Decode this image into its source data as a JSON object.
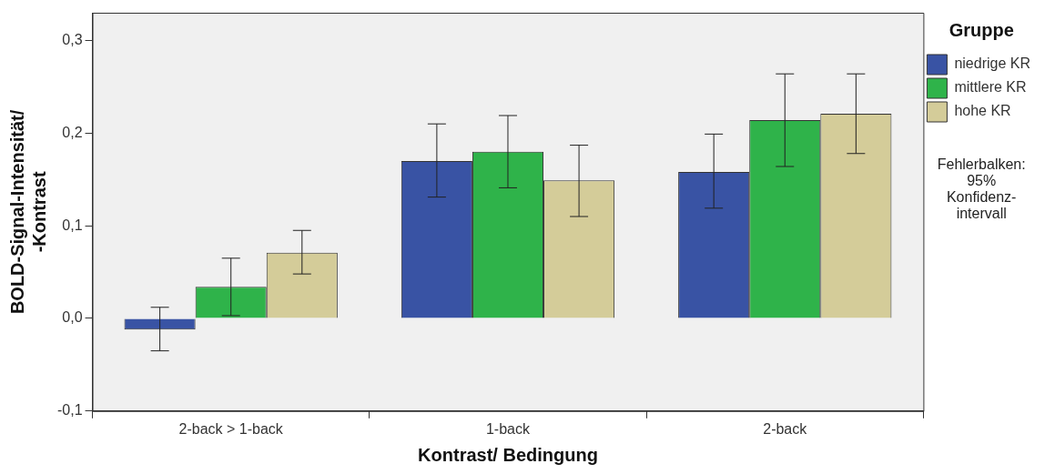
{
  "chart_data": {
    "type": "bar",
    "xlabel": "Kontrast/ Bedingung",
    "ylabel": "BOLD-Signal-Intensität/ -Kontrast",
    "legend_title": "Gruppe",
    "legend": "right",
    "categories": [
      "2-back > 1-back",
      "1-back",
      "2-back"
    ],
    "series": [
      {
        "name": "niedrige KR",
        "color": "#3953a4",
        "values": [
          -0.012,
          0.17,
          0.158
        ],
        "errors": [
          [
            -0.035,
            0.012
          ],
          [
            0.131,
            0.21
          ],
          [
            0.119,
            0.199
          ]
        ]
      },
      {
        "name": "mittlere KR",
        "color": "#2fb34a",
        "values": [
          0.034,
          0.18,
          0.214
        ],
        "errors": [
          [
            0.003,
            0.065
          ],
          [
            0.141,
            0.219
          ],
          [
            0.164,
            0.264
          ]
        ]
      },
      {
        "name": "hohe KR",
        "color": "#d4cc99",
        "values": [
          0.071,
          0.149,
          0.221
        ],
        "errors": [
          [
            0.048,
            0.095
          ],
          [
            0.11,
            0.187
          ],
          [
            0.178,
            0.264
          ]
        ]
      }
    ],
    "ylim": [
      -0.1,
      0.33
    ],
    "yticks": [
      {
        "value": -0.1,
        "label": "-0,1"
      },
      {
        "value": 0,
        "label": "0,0"
      },
      {
        "value": 0.1,
        "label": "0,1"
      },
      {
        "value": 0.2,
        "label": "0,2"
      },
      {
        "value": 0.3,
        "label": "0,3"
      }
    ],
    "grid": false,
    "annotations": [
      "Fehlerbalken: 95% Konfidenz-intervall"
    ]
  }
}
